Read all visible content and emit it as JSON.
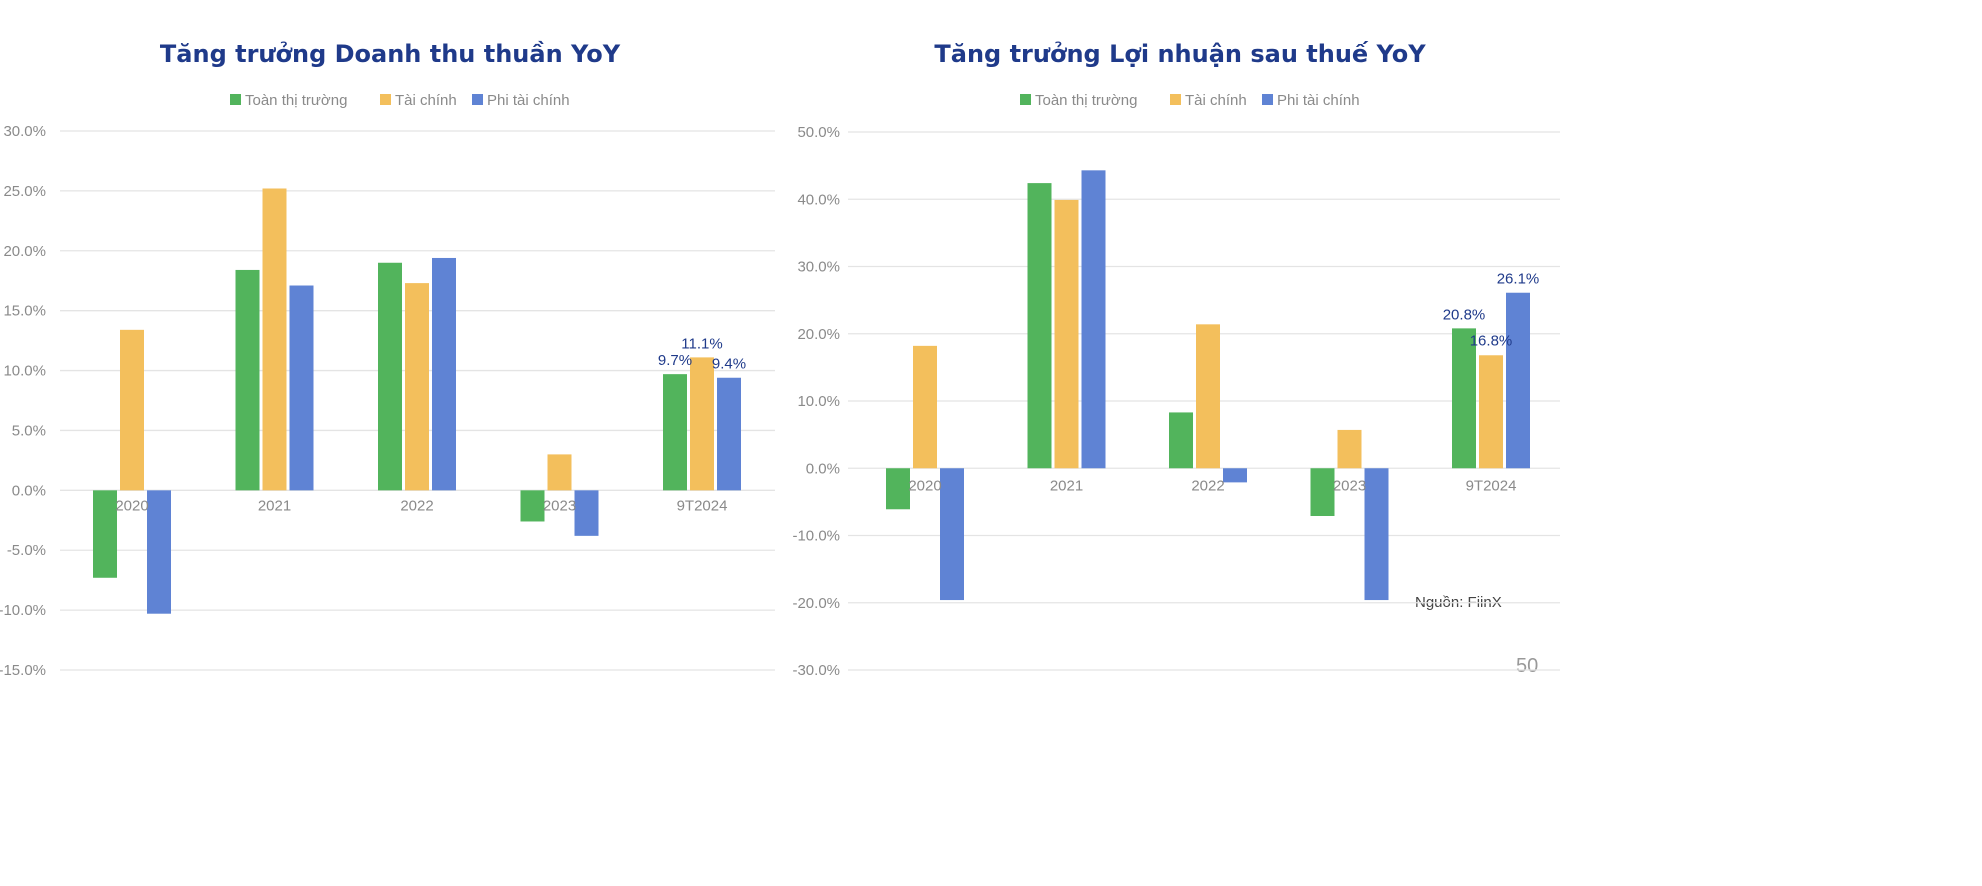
{
  "colors": {
    "Toàn thị trường": "#52b45c",
    "Tài chính": "#f3bf5c",
    "Phi tài chính": "#5f83d4",
    "title": "#1f3a8a"
  },
  "source": "Nguồn: FiinX",
  "page_number": "50",
  "chart_data": [
    {
      "type": "bar",
      "title": "Tăng trưởng Doanh thu thuần YoY",
      "categories": [
        "2020",
        "2021",
        "2022",
        "2023",
        "9T2024"
      ],
      "ylim": [
        -15,
        30
      ],
      "yticks": [
        "30.0%",
        "25.0%",
        "20.0%",
        "15.0%",
        "10.0%",
        "5.0%",
        "0.0%",
        "-5.0%",
        "-10.0%",
        "-15.0%"
      ],
      "grid": true,
      "legend": "top-center",
      "series": [
        {
          "name": "Toàn thị trường",
          "values": [
            -7.3,
            18.4,
            19.0,
            -2.6,
            9.7
          ]
        },
        {
          "name": "Tài chính",
          "values": [
            13.4,
            25.2,
            17.3,
            3.0,
            11.1
          ]
        },
        {
          "name": "Phi tài chính",
          "values": [
            -10.3,
            17.1,
            19.4,
            -3.8,
            9.4
          ]
        }
      ],
      "data_labels": [
        {
          "series": 0,
          "category": 4,
          "text": "9.7%"
        },
        {
          "series": 1,
          "category": 4,
          "text": "11.1%"
        },
        {
          "series": 2,
          "category": 4,
          "text": "9.4%"
        }
      ]
    },
    {
      "type": "bar",
      "title": "Tăng trưởng Lợi nhuận sau thuế YoY",
      "categories": [
        "2020",
        "2021",
        "2022",
        "2023",
        "9T2024"
      ],
      "ylim": [
        -30,
        50
      ],
      "yticks": [
        "50.0%",
        "40.0%",
        "30.0%",
        "20.0%",
        "10.0%",
        "0.0%",
        "-10.0%",
        "-20.0%",
        "-30.0%"
      ],
      "grid": true,
      "legend": "top-center",
      "series": [
        {
          "name": "Toàn thị trường",
          "values": [
            -6.1,
            42.4,
            8.3,
            -7.1,
            20.8
          ]
        },
        {
          "name": "Tài chính",
          "values": [
            18.2,
            39.9,
            21.4,
            5.7,
            16.8
          ]
        },
        {
          "name": "Phi tài chính",
          "values": [
            -19.6,
            44.3,
            -2.1,
            -19.6,
            26.1
          ]
        }
      ],
      "data_labels": [
        {
          "series": 0,
          "category": 4,
          "text": "20.8%"
        },
        {
          "series": 1,
          "category": 4,
          "text": "16.8%"
        },
        {
          "series": 2,
          "category": 4,
          "text": "26.1%"
        }
      ]
    }
  ]
}
